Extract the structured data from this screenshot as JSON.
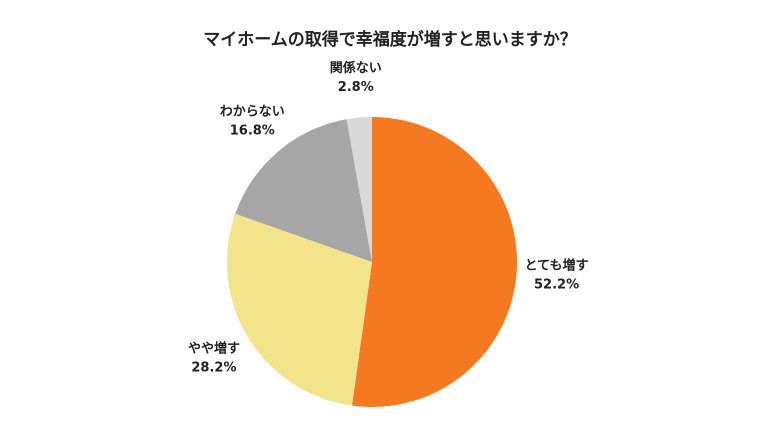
{
  "chart_data": {
    "type": "pie",
    "title": "マイホームの取得で幸福度が増すと思いますか？",
    "categories": [
      "とても増す",
      "やや増す",
      "わからない",
      "関係ない"
    ],
    "values": [
      52.2,
      28.2,
      16.8,
      2.8
    ],
    "value_labels": [
      "52.2%",
      "28.2%",
      "16.8%",
      "2.8%"
    ],
    "colors": [
      "#f47920",
      "#f3e38a",
      "#a6a6a6",
      "#d9d9d9"
    ]
  }
}
